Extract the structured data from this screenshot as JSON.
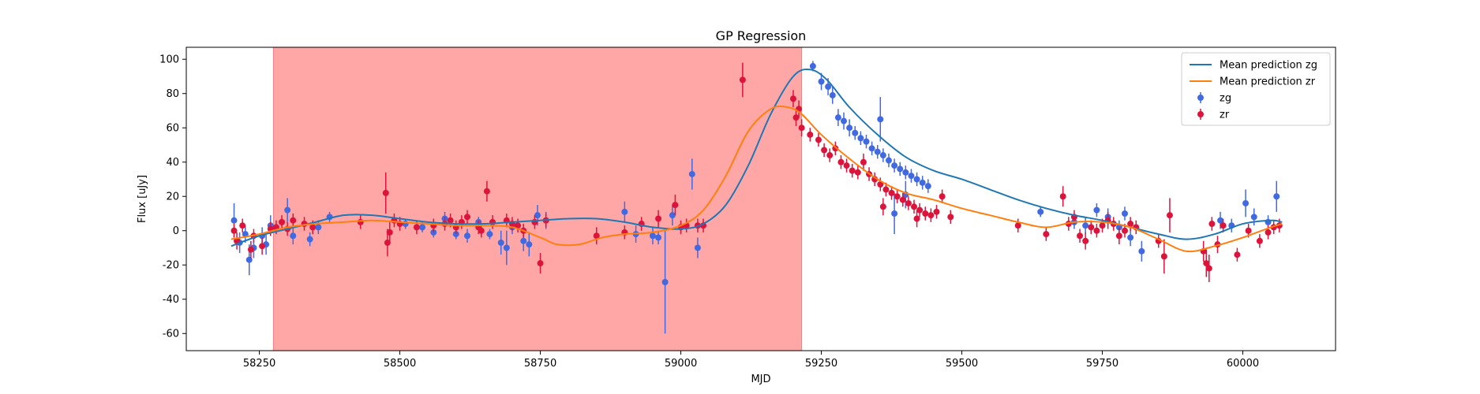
{
  "chart_data": {
    "type": "scatter",
    "title": "GP Regression",
    "xlabel": "MJD",
    "ylabel": "Flux [uJy]",
    "xlim": [
      58120,
      60165
    ],
    "ylim": [
      -70,
      107
    ],
    "xticks": [
      58250,
      58500,
      58750,
      59000,
      59250,
      59500,
      59750,
      60000
    ],
    "yticks": [
      -60,
      -40,
      -20,
      0,
      20,
      40,
      60,
      80,
      100
    ],
    "grid": false,
    "legend_position": "upper right",
    "shaded_span": {
      "x0": 58275,
      "x1": 59215,
      "color": "#ffa6a6"
    },
    "colors": {
      "zg": "#4169e1",
      "zr": "#dc143c",
      "mean_zg": "#1f77b4",
      "mean_zr": "#ff7f0e"
    },
    "legend": [
      {
        "label": "Mean prediction zg",
        "kind": "line",
        "color": "#1f77b4"
      },
      {
        "label": "Mean prediction zr",
        "kind": "line",
        "color": "#ff7f0e"
      },
      {
        "label": "zg",
        "kind": "errorbar",
        "color": "#4169e1"
      },
      {
        "label": "zr",
        "kind": "errorbar",
        "color": "#dc143c"
      }
    ],
    "lines": [
      {
        "name": "Mean prediction zg",
        "color": "#1f77b4",
        "x": [
          58200,
          58250,
          58300,
          58350,
          58400,
          58450,
          58500,
          58550,
          58600,
          58650,
          58700,
          58750,
          58800,
          58850,
          58900,
          58950,
          59000,
          59040,
          59080,
          59120,
          59160,
          59200,
          59230,
          59260,
          59300,
          59350,
          59400,
          59450,
          59500,
          59550,
          59600,
          59650,
          59700,
          59750,
          59800,
          59850,
          59900,
          59950,
          60000,
          60050,
          60070
        ],
        "y": [
          -9,
          -3,
          1,
          5,
          9,
          9,
          7,
          5,
          4,
          4,
          5,
          6,
          7,
          7,
          5,
          2,
          1,
          4,
          15,
          38,
          68,
          90,
          94,
          88,
          72,
          56,
          43,
          35,
          30,
          24,
          18,
          13,
          9,
          6,
          2,
          -2,
          -5,
          -2,
          4,
          6,
          5
        ]
      },
      {
        "name": "Mean prediction zr",
        "color": "#ff7f0e",
        "x": [
          58200,
          58250,
          58300,
          58350,
          58400,
          58450,
          58500,
          58550,
          58600,
          58650,
          58700,
          58750,
          58780,
          58820,
          58860,
          58900,
          58950,
          59000,
          59040,
          59080,
          59120,
          59160,
          59190,
          59215,
          59250,
          59300,
          59350,
          59400,
          59450,
          59500,
          59550,
          59600,
          59650,
          59700,
          59750,
          59800,
          59850,
          59900,
          59950,
          60000,
          60050,
          60070
        ],
        "y": [
          -5,
          -2,
          2,
          4,
          5,
          6,
          5,
          4,
          3,
          3,
          2,
          -4,
          -8,
          -8,
          -4,
          -2,
          -1,
          3,
          12,
          32,
          58,
          71,
          72,
          68,
          56,
          42,
          30,
          22,
          18,
          13,
          9,
          5,
          2,
          5,
          5,
          2,
          -5,
          -12,
          -9,
          -4,
          2,
          4
        ]
      }
    ],
    "series": [
      {
        "name": "zg",
        "color": "#4169e1",
        "points": [
          [
            58205,
            6,
            10
          ],
          [
            58215,
            -7,
            6
          ],
          [
            58225,
            -2,
            5
          ],
          [
            58232,
            -17,
            9
          ],
          [
            58240,
            -10,
            6
          ],
          [
            58255,
            -3,
            5
          ],
          [
            58262,
            -8,
            6
          ],
          [
            58270,
            3,
            6
          ],
          [
            58300,
            12,
            7
          ],
          [
            58310,
            -3,
            5
          ],
          [
            58340,
            -5,
            4
          ],
          [
            58355,
            2,
            4
          ],
          [
            58375,
            8,
            3
          ],
          [
            58510,
            4,
            3
          ],
          [
            58540,
            2,
            3
          ],
          [
            58560,
            -1,
            3
          ],
          [
            58580,
            7,
            4
          ],
          [
            58600,
            -2,
            3
          ],
          [
            58620,
            -3,
            4
          ],
          [
            58640,
            5,
            3
          ],
          [
            58660,
            -2,
            3
          ],
          [
            58680,
            -7,
            7
          ],
          [
            58690,
            -10,
            10
          ],
          [
            58700,
            2,
            4
          ],
          [
            58720,
            -6,
            6
          ],
          [
            58730,
            -8,
            7
          ],
          [
            58745,
            9,
            6
          ],
          [
            58760,
            6,
            5
          ],
          [
            58900,
            11,
            6
          ],
          [
            58920,
            -2,
            5
          ],
          [
            58950,
            -3,
            5
          ],
          [
            58960,
            -4,
            4
          ],
          [
            58972,
            -30,
            30
          ],
          [
            58985,
            9,
            6
          ],
          [
            59020,
            33,
            9
          ],
          [
            59030,
            -10,
            6
          ],
          [
            59235,
            96,
            3
          ],
          [
            59250,
            87,
            5
          ],
          [
            59262,
            84,
            5
          ],
          [
            59270,
            79,
            5
          ],
          [
            59280,
            66,
            5
          ],
          [
            59290,
            64,
            5
          ],
          [
            59300,
            60,
            5
          ],
          [
            59310,
            57,
            4
          ],
          [
            59320,
            54,
            4
          ],
          [
            59330,
            52,
            4
          ],
          [
            59340,
            48,
            4
          ],
          [
            59350,
            46,
            4
          ],
          [
            59360,
            44,
            4
          ],
          [
            59370,
            41,
            4
          ],
          [
            59380,
            38,
            4
          ],
          [
            59390,
            36,
            4
          ],
          [
            59400,
            34,
            4
          ],
          [
            59410,
            32,
            4
          ],
          [
            59420,
            30,
            4
          ],
          [
            59430,
            28,
            4
          ],
          [
            59440,
            26,
            4
          ],
          [
            59355,
            65,
            13
          ],
          [
            59380,
            10,
            12
          ],
          [
            59400,
            21,
            8
          ],
          [
            59640,
            11,
            3
          ],
          [
            59700,
            5,
            4
          ],
          [
            59720,
            3,
            5
          ],
          [
            59740,
            12,
            4
          ],
          [
            59760,
            8,
            5
          ],
          [
            59780,
            2,
            4
          ],
          [
            59790,
            10,
            4
          ],
          [
            59800,
            -4,
            5
          ],
          [
            59820,
            -12,
            6
          ],
          [
            59960,
            6,
            5
          ],
          [
            59980,
            3,
            4
          ],
          [
            60005,
            16,
            8
          ],
          [
            60020,
            8,
            5
          ],
          [
            60045,
            5,
            4
          ],
          [
            60060,
            20,
            9
          ]
        ]
      },
      {
        "name": "zr",
        "color": "#dc143c",
        "points": [
          [
            58205,
            0,
            4
          ],
          [
            58210,
            -6,
            5
          ],
          [
            58220,
            3,
            4
          ],
          [
            58235,
            -11,
            5
          ],
          [
            58240,
            -3,
            4
          ],
          [
            58255,
            -9,
            5
          ],
          [
            58270,
            1,
            4
          ],
          [
            58280,
            2,
            4
          ],
          [
            58290,
            5,
            4
          ],
          [
            58300,
            1,
            4
          ],
          [
            58310,
            6,
            4
          ],
          [
            58330,
            4,
            4
          ],
          [
            58345,
            2,
            4
          ],
          [
            58430,
            5,
            4
          ],
          [
            58475,
            22,
            12
          ],
          [
            58478,
            -7,
            8
          ],
          [
            58482,
            -1,
            6
          ],
          [
            58490,
            6,
            4
          ],
          [
            58500,
            4,
            4
          ],
          [
            58530,
            2,
            4
          ],
          [
            58560,
            3,
            4
          ],
          [
            58580,
            4,
            4
          ],
          [
            58590,
            6,
            4
          ],
          [
            58600,
            2,
            4
          ],
          [
            58610,
            5,
            4
          ],
          [
            58620,
            8,
            4
          ],
          [
            58640,
            2,
            4
          ],
          [
            58645,
            0,
            4
          ],
          [
            58655,
            23,
            6
          ],
          [
            58665,
            5,
            4
          ],
          [
            58690,
            6,
            4
          ],
          [
            58700,
            4,
            4
          ],
          [
            58710,
            3,
            4
          ],
          [
            58720,
            0,
            4
          ],
          [
            58740,
            5,
            4
          ],
          [
            58750,
            -19,
            6
          ],
          [
            58760,
            6,
            4
          ],
          [
            58850,
            -3,
            5
          ],
          [
            58900,
            -1,
            4
          ],
          [
            58930,
            4,
            4
          ],
          [
            58960,
            7,
            5
          ],
          [
            58990,
            15,
            6
          ],
          [
            59000,
            2,
            4
          ],
          [
            59010,
            3,
            4
          ],
          [
            59030,
            3,
            4
          ],
          [
            59040,
            3,
            4
          ],
          [
            59110,
            88,
            10
          ],
          [
            59200,
            77,
            5
          ],
          [
            59205,
            66,
            5
          ],
          [
            59210,
            71,
            5
          ],
          [
            59215,
            60,
            5
          ],
          [
            59230,
            56,
            4
          ],
          [
            59245,
            53,
            4
          ],
          [
            59255,
            47,
            4
          ],
          [
            59265,
            44,
            4
          ],
          [
            59275,
            48,
            4
          ],
          [
            59285,
            40,
            4
          ],
          [
            59295,
            38,
            4
          ],
          [
            59305,
            35,
            4
          ],
          [
            59315,
            34,
            4
          ],
          [
            59325,
            40,
            5
          ],
          [
            59335,
            33,
            4
          ],
          [
            59345,
            30,
            4
          ],
          [
            59355,
            27,
            4
          ],
          [
            59365,
            24,
            4
          ],
          [
            59375,
            22,
            4
          ],
          [
            59385,
            20,
            4
          ],
          [
            59395,
            18,
            4
          ],
          [
            59405,
            16,
            4
          ],
          [
            59415,
            14,
            4
          ],
          [
            59425,
            12,
            4
          ],
          [
            59435,
            10,
            4
          ],
          [
            59445,
            9,
            4
          ],
          [
            59455,
            11,
            4
          ],
          [
            59465,
            20,
            4
          ],
          [
            59480,
            8,
            4
          ],
          [
            59360,
            14,
            5
          ],
          [
            59420,
            7,
            5
          ],
          [
            59600,
            3,
            4
          ],
          [
            59650,
            -2,
            4
          ],
          [
            59680,
            20,
            6
          ],
          [
            59690,
            4,
            4
          ],
          [
            59700,
            8,
            4
          ],
          [
            59710,
            -3,
            4
          ],
          [
            59720,
            -6,
            5
          ],
          [
            59730,
            2,
            4
          ],
          [
            59740,
            0,
            4
          ],
          [
            59750,
            3,
            4
          ],
          [
            59760,
            6,
            5
          ],
          [
            59770,
            4,
            4
          ],
          [
            59780,
            -3,
            5
          ],
          [
            59790,
            0,
            4
          ],
          [
            59800,
            4,
            4
          ],
          [
            59810,
            2,
            4
          ],
          [
            59850,
            -6,
            4
          ],
          [
            59860,
            -15,
            10
          ],
          [
            59870,
            9,
            10
          ],
          [
            59930,
            -12,
            6
          ],
          [
            59935,
            -19,
            8
          ],
          [
            59940,
            -22,
            8
          ],
          [
            59945,
            4,
            4
          ],
          [
            59955,
            -8,
            5
          ],
          [
            59965,
            3,
            4
          ],
          [
            59990,
            -14,
            4
          ],
          [
            60010,
            0,
            4
          ],
          [
            60030,
            -6,
            4
          ],
          [
            60045,
            -1,
            4
          ],
          [
            60055,
            2,
            4
          ],
          [
            60065,
            3,
            4
          ]
        ]
      }
    ]
  }
}
